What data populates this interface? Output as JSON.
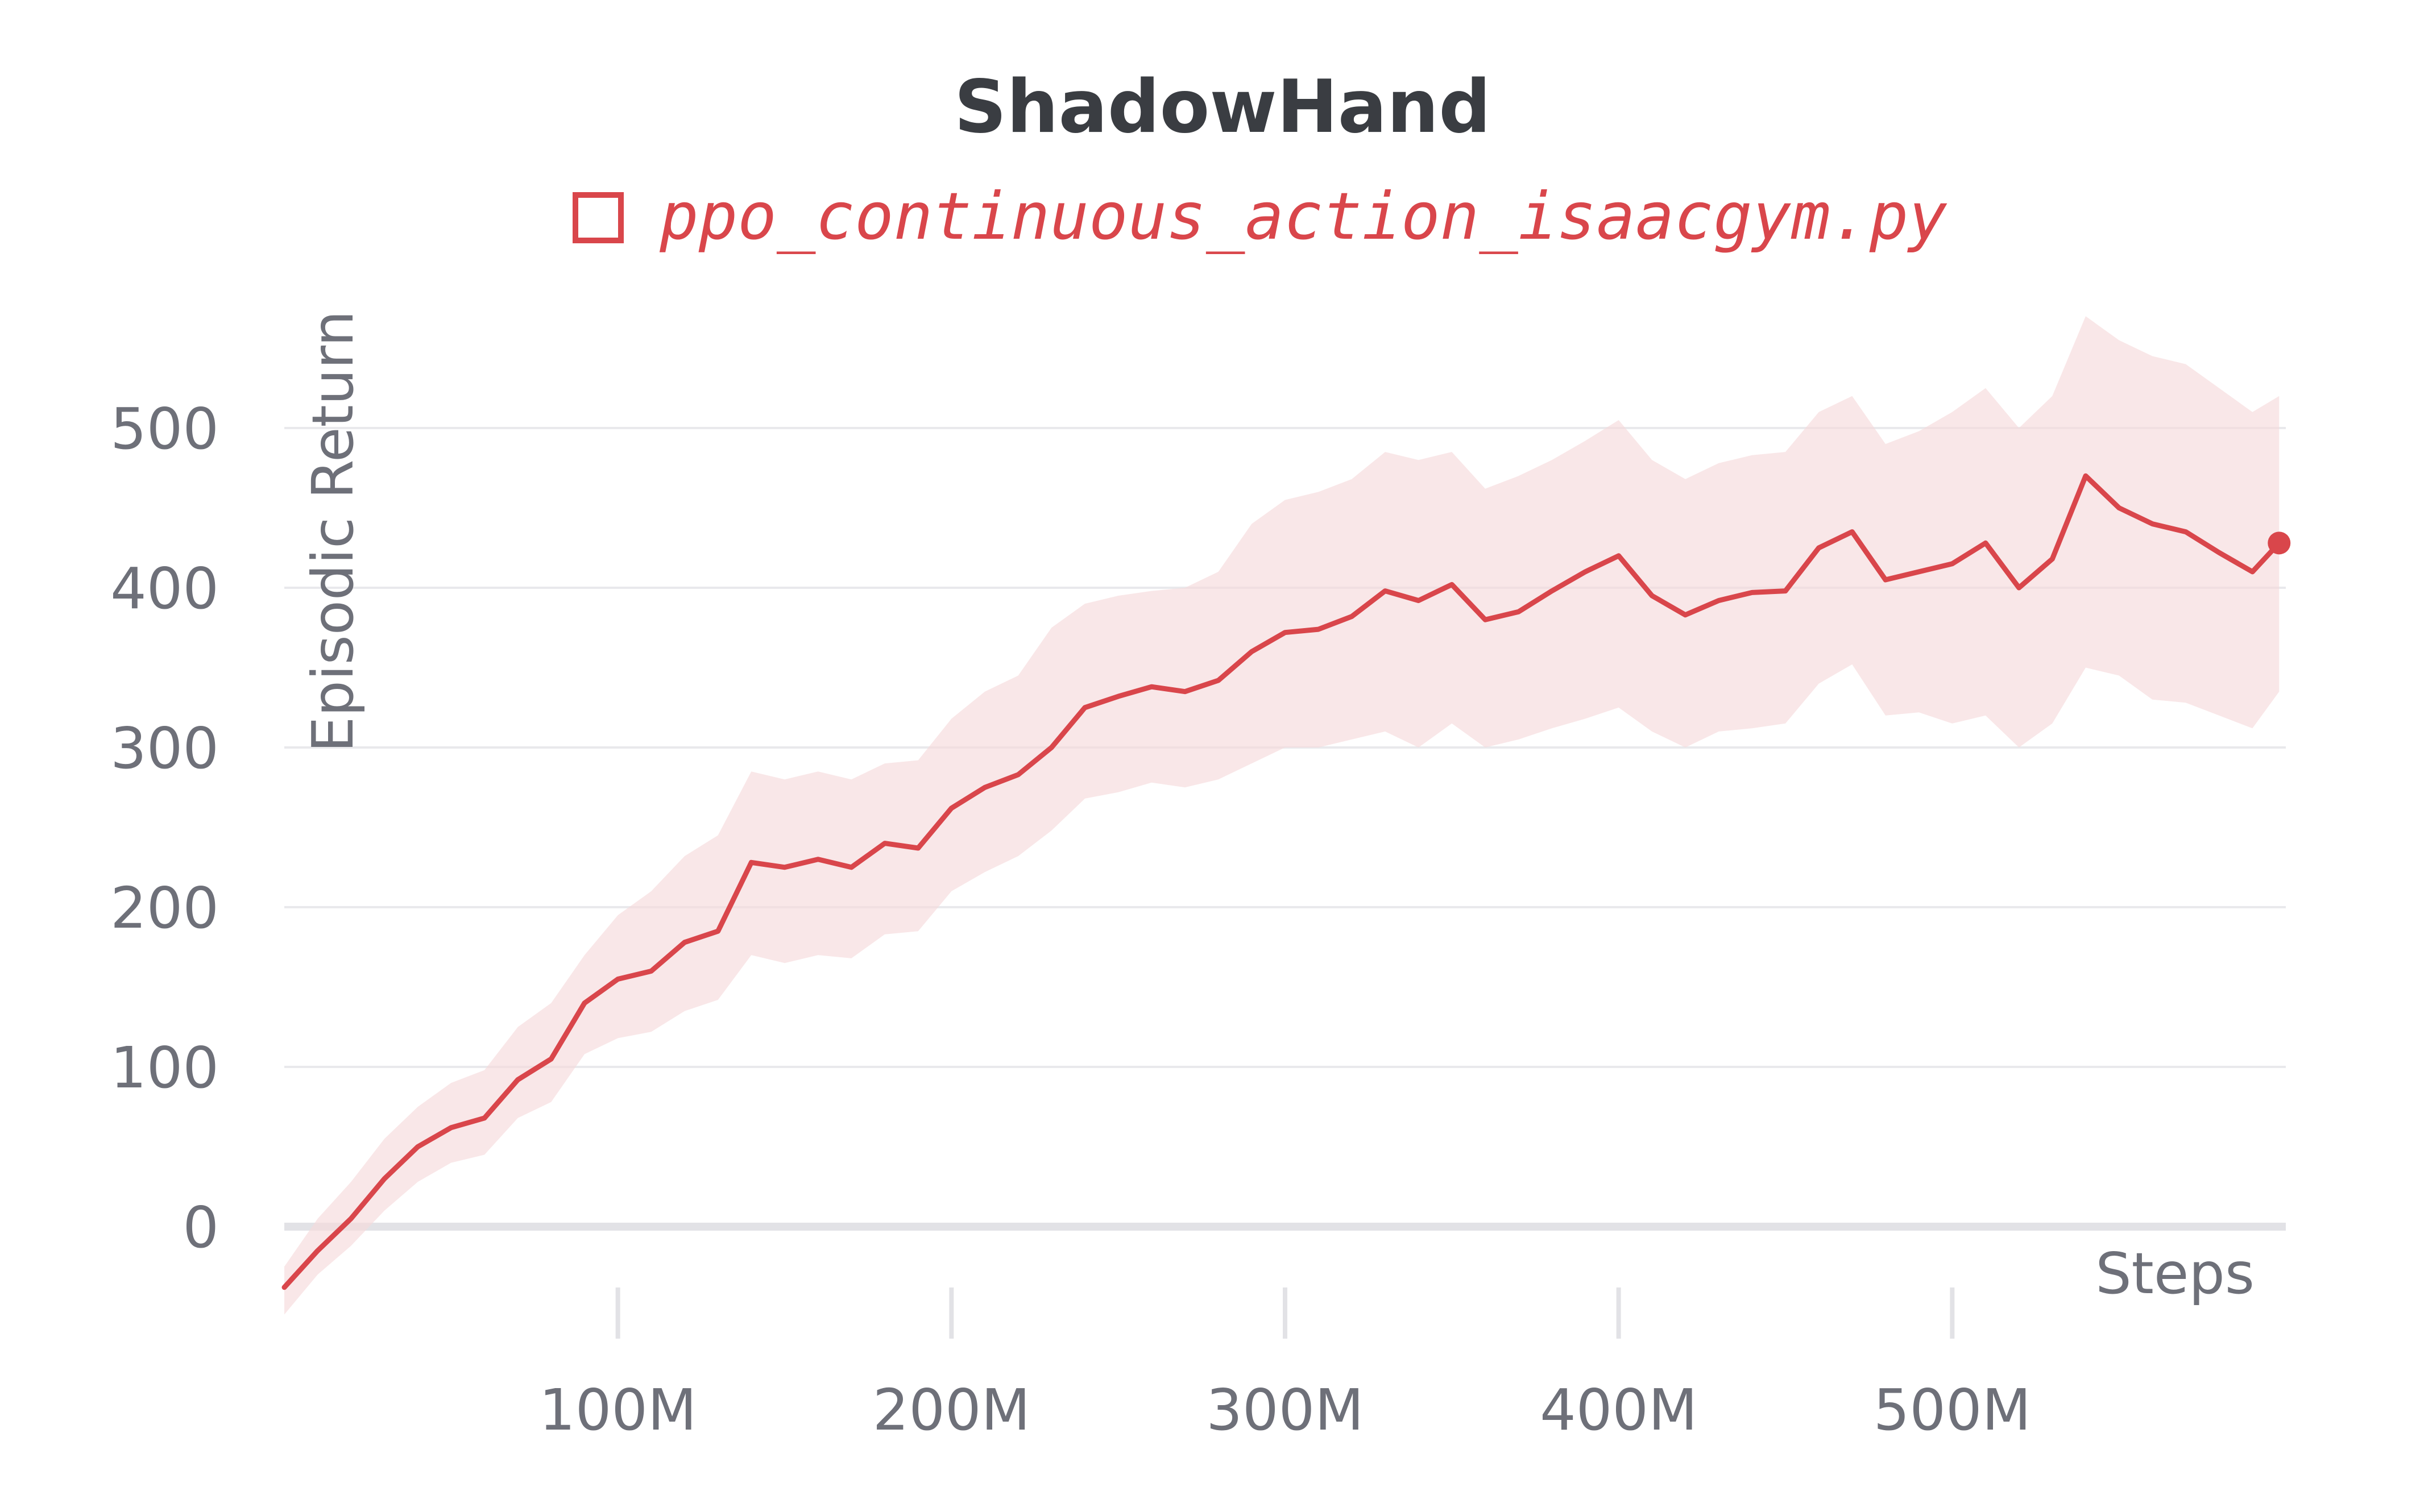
{
  "chart_data": {
    "type": "line",
    "title": "ShadowHand",
    "xlabel": "Steps",
    "ylabel": "Episodic Return",
    "xlim": [
      0,
      600000000
    ],
    "ylim": [
      -60,
      570
    ],
    "yticks": [
      0,
      100,
      200,
      300,
      400,
      500
    ],
    "ytick_labels": [
      "0",
      "100",
      "200",
      "300",
      "400",
      "500"
    ],
    "xticks": [
      100000000,
      200000000,
      300000000,
      400000000,
      500000000
    ],
    "xtick_labels": [
      "100M",
      "200M",
      "300M",
      "400M",
      "500M"
    ],
    "grid": true,
    "legend_position": "top-center",
    "series": [
      {
        "name": "ppo_continuous_action_isaacgym.py",
        "color": "#d9464b",
        "band_color": "#f6dadb",
        "x": [
          0,
          10000000,
          20000000,
          30000000,
          40000000,
          50000000,
          60000000,
          70000000,
          80000000,
          90000000,
          100000000,
          110000000,
          120000000,
          130000000,
          140000000,
          150000000,
          160000000,
          170000000,
          180000000,
          190000000,
          200000000,
          210000000,
          220000000,
          230000000,
          240000000,
          250000000,
          260000000,
          270000000,
          280000000,
          290000000,
          300000000,
          310000000,
          320000000,
          330000000,
          340000000,
          350000000,
          360000000,
          370000000,
          380000000,
          390000000,
          400000000,
          410000000,
          420000000,
          430000000,
          440000000,
          450000000,
          460000000,
          470000000,
          480000000,
          490000000,
          500000000,
          510000000,
          520000000,
          530000000,
          540000000,
          550000000,
          560000000,
          570000000,
          580000000,
          590000000,
          598000000
        ],
        "y": [
          -38,
          -15,
          5,
          30,
          50,
          62,
          68,
          92,
          105,
          140,
          155,
          160,
          178,
          185,
          228,
          225,
          230,
          225,
          240,
          237,
          262,
          275,
          283,
          300,
          325,
          332,
          338,
          335,
          342,
          360,
          372,
          374,
          382,
          398,
          392,
          402,
          380,
          385,
          398,
          410,
          420,
          395,
          383,
          392,
          397,
          398,
          425,
          435,
          405,
          410,
          415,
          428,
          400,
          418,
          470,
          450,
          440,
          435,
          422,
          410,
          428
        ],
        "lower": [
          -55,
          -30,
          -12,
          10,
          28,
          40,
          45,
          68,
          78,
          108,
          118,
          122,
          135,
          142,
          170,
          165,
          170,
          168,
          183,
          185,
          210,
          222,
          232,
          248,
          268,
          272,
          278,
          275,
          280,
          290,
          300,
          300,
          305,
          310,
          300,
          315,
          300,
          305,
          312,
          318,
          325,
          310,
          300,
          310,
          312,
          315,
          340,
          352,
          320,
          322,
          315,
          320,
          300,
          315,
          350,
          345,
          330,
          328,
          320,
          312,
          335
        ],
        "upper": [
          -25,
          5,
          28,
          55,
          75,
          90,
          98,
          125,
          140,
          170,
          195,
          210,
          232,
          245,
          285,
          280,
          285,
          280,
          290,
          292,
          318,
          335,
          345,
          375,
          390,
          395,
          398,
          400,
          410,
          440,
          455,
          460,
          468,
          485,
          480,
          485,
          462,
          470,
          480,
          492,
          505,
          480,
          468,
          478,
          483,
          485,
          510,
          520,
          490,
          498,
          510,
          525,
          500,
          520,
          570,
          555,
          545,
          540,
          525,
          510,
          520
        ]
      }
    ]
  }
}
